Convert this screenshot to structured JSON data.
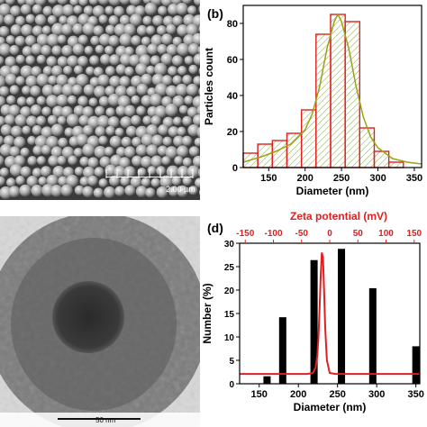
{
  "panel_a": {
    "scale_text": "2.00 µm",
    "description_colors": {
      "bg": "#3a3a3a",
      "sphere": "#bdbdbd"
    }
  },
  "panel_c": {
    "scale_text": "50 nm"
  },
  "panel_b": {
    "label": "(b)"
  },
  "panel_d": {
    "label": "(d)"
  },
  "chart_data": [
    {
      "id": "b",
      "type": "bar",
      "xlabel": "Diameter (nm)",
      "ylabel": "Particles count",
      "xlim": [
        115,
        360
      ],
      "ylim": [
        0,
        90
      ],
      "xticks": [
        150,
        200,
        250,
        300,
        350
      ],
      "yticks": [
        0,
        20,
        40,
        60,
        80
      ],
      "bin_width": 20,
      "bins": [
        {
          "x": 125,
          "value": 8
        },
        {
          "x": 145,
          "value": 13
        },
        {
          "x": 165,
          "value": 15
        },
        {
          "x": 185,
          "value": 19
        },
        {
          "x": 205,
          "value": 32
        },
        {
          "x": 225,
          "value": 74
        },
        {
          "x": 245,
          "value": 85
        },
        {
          "x": 265,
          "value": 81
        },
        {
          "x": 285,
          "value": 22
        },
        {
          "x": 305,
          "value": 9
        },
        {
          "x": 325,
          "value": 3
        }
      ],
      "fit_curve": {
        "x": [
          115,
          140,
          160,
          180,
          200,
          210,
          220,
          230,
          240,
          245,
          250,
          260,
          270,
          280,
          290,
          300,
          320,
          340,
          360
        ],
        "y": [
          3,
          6,
          9,
          13,
          21,
          30,
          45,
          66,
          81,
          85,
          81,
          66,
          45,
          28,
          17,
          11,
          5,
          3,
          2
        ]
      },
      "colors": {
        "bar_edge": "#e02020",
        "hatch": "#8ab04a",
        "fit": "#9aa21a"
      }
    },
    {
      "id": "d",
      "type": "bar",
      "xlabel": "Diameter (nm)",
      "ylabel": "Number (%)",
      "top_xlabel": "Zeta potential (mV)",
      "xlim": [
        125,
        355
      ],
      "ylim": [
        0,
        30
      ],
      "xticks": [
        150,
        200,
        250,
        300,
        350
      ],
      "yticks": [
        0,
        5,
        10,
        15,
        20,
        25,
        30
      ],
      "top_xlim": [
        -160,
        160
      ],
      "top_xticks": [
        -150,
        -100,
        -50,
        0,
        50,
        100,
        150
      ],
      "bars": [
        {
          "x": 160,
          "value": 1.6
        },
        {
          "x": 180,
          "value": 14.2
        },
        {
          "x": 220,
          "value": 26.4
        },
        {
          "x": 255,
          "value": 28.8
        },
        {
          "x": 295,
          "value": 20.4
        },
        {
          "x": 350,
          "value": 8.0
        }
      ],
      "zeta_curve": {
        "x": [
          -160,
          -40,
          -30,
          -25,
          -22,
          -20,
          -18,
          -16,
          -14,
          -12,
          -10,
          -8,
          -5,
          0,
          10,
          160
        ],
        "y": [
          2.1,
          2.1,
          2.3,
          3.5,
          6,
          10,
          16,
          23,
          28,
          27,
          20,
          12,
          5,
          2.3,
          2.1,
          2.1
        ]
      },
      "colors": {
        "bar": "#000000",
        "zeta": "#e02020"
      }
    }
  ]
}
